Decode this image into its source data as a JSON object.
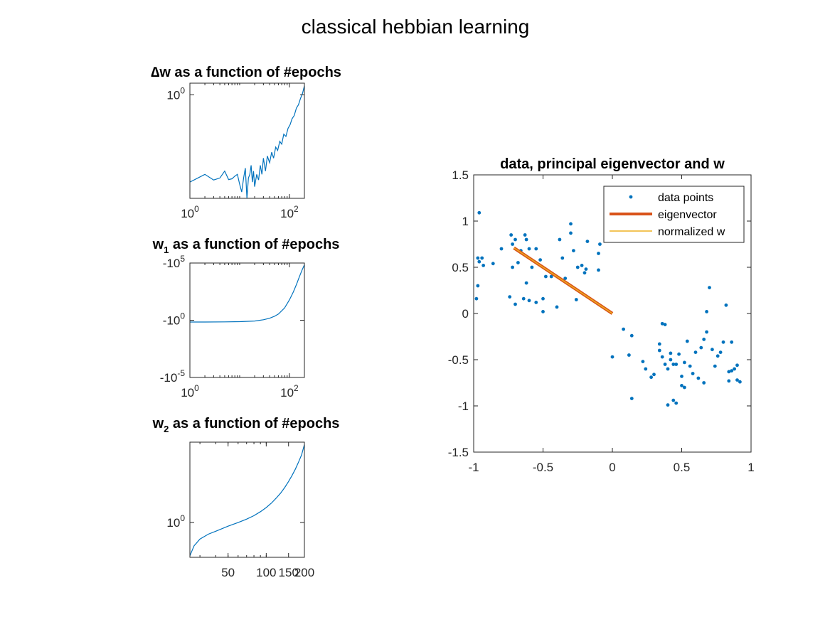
{
  "figure": {
    "title": "classical hebbian learning"
  },
  "colors": {
    "blue": "#0072BD",
    "orange": "#D95319",
    "yellow": "#EDB120",
    "axis": "#262626"
  },
  "chart_data": [
    {
      "id": "dw",
      "type": "line",
      "title": "∆w as a function of #epochs",
      "xscale": "log",
      "yscale": "log",
      "xlim": [
        1,
        200
      ],
      "ylim": [
        0.05,
        1.4
      ],
      "xticks": [
        {
          "v": 1,
          "base": "10",
          "exp": "0"
        },
        {
          "v": 100,
          "base": "10",
          "exp": "2"
        }
      ],
      "yticks": [
        {
          "v": 1,
          "base": "10",
          "exp": "0"
        }
      ],
      "grid": false,
      "series": [
        {
          "x": [
            1,
            2,
            3,
            4,
            5,
            6,
            7,
            8,
            9,
            10,
            11,
            12,
            13,
            14,
            15,
            16,
            17,
            18,
            19,
            20,
            22,
            24,
            26,
            28,
            30,
            33,
            36,
            40,
            44,
            48,
            53,
            58,
            64,
            70,
            77,
            85,
            94,
            103,
            113,
            125,
            138,
            152,
            167,
            184,
            200
          ],
          "y": [
            0.08,
            0.1,
            0.085,
            0.09,
            0.11,
            0.086,
            0.088,
            0.095,
            0.1,
            0.075,
            0.06,
            0.09,
            0.12,
            0.05,
            0.09,
            0.1,
            0.13,
            0.08,
            0.11,
            0.07,
            0.1,
            0.085,
            0.13,
            0.1,
            0.16,
            0.11,
            0.17,
            0.14,
            0.19,
            0.16,
            0.22,
            0.2,
            0.26,
            0.24,
            0.32,
            0.3,
            0.38,
            0.42,
            0.5,
            0.55,
            0.68,
            0.75,
            0.9,
            1.05,
            1.3
          ]
        }
      ]
    },
    {
      "id": "w1",
      "type": "line",
      "title": "w1 as a function of #epochs",
      "xscale": "log",
      "yscale": "symlog-negative",
      "xlim": [
        1,
        200
      ],
      "ylim": [
        -100000,
        -1e-05
      ],
      "xticks": [
        {
          "v": 1,
          "base": "10",
          "exp": "0"
        },
        {
          "v": 100,
          "base": "10",
          "exp": "2"
        }
      ],
      "yticks": [
        {
          "v": -1e-05,
          "base": "-10",
          "exp": "-5"
        },
        {
          "v": -1,
          "base": "-10",
          "exp": "0"
        },
        {
          "v": -100000,
          "base": "-10",
          "exp": "5"
        }
      ],
      "grid": false,
      "series": [
        {
          "x": [
            1,
            2,
            5,
            10,
            20,
            30,
            40,
            50,
            60,
            80,
            100,
            120,
            140,
            160,
            180,
            200
          ],
          "y": [
            -0.7,
            -0.7,
            -0.72,
            -0.75,
            -0.85,
            -1.1,
            -1.5,
            -2.2,
            -3.5,
            -12,
            -60,
            -300,
            -1500,
            -7000,
            -25000,
            -70000
          ]
        }
      ]
    },
    {
      "id": "w2",
      "type": "line",
      "title": "w2 as a function of #epochs",
      "xscale": "log",
      "yscale": "log",
      "xlim": [
        25,
        200
      ],
      "ylim": [
        0.008,
        70000
      ],
      "xticks": [
        {
          "v": 50,
          "label": "50"
        },
        {
          "v": 100,
          "label": "100"
        },
        {
          "v": 150,
          "label": "150"
        },
        {
          "v": 200,
          "label": "200"
        }
      ],
      "yticks": [
        {
          "v": 1,
          "base": "10",
          "exp": "0"
        }
      ],
      "grid": false,
      "series": [
        {
          "x": [
            25,
            27,
            30,
            35,
            40,
            50,
            60,
            70,
            80,
            90,
            100,
            110,
            120,
            130,
            140,
            150,
            160,
            170,
            180,
            190,
            200
          ],
          "y": [
            0.01,
            0.04,
            0.1,
            0.2,
            0.3,
            0.6,
            1.0,
            1.6,
            2.6,
            4.5,
            8,
            15,
            30,
            60,
            130,
            300,
            700,
            1700,
            4500,
            12000,
            50000
          ]
        }
      ]
    },
    {
      "id": "scatter",
      "type": "scatter",
      "title": "data, principal eigenvector and w",
      "xlim": [
        -1,
        1
      ],
      "ylim": [
        -1.5,
        1.5
      ],
      "xticks": [
        {
          "v": -1,
          "label": "-1"
        },
        {
          "v": -0.5,
          "label": "-0.5"
        },
        {
          "v": 0,
          "label": "0"
        },
        {
          "v": 0.5,
          "label": "0.5"
        },
        {
          "v": 1,
          "label": "1"
        }
      ],
      "yticks": [
        {
          "v": -1.5,
          "label": "-1.5"
        },
        {
          "v": -1,
          "label": "-1"
        },
        {
          "v": -0.5,
          "label": "-0.5"
        },
        {
          "v": 0,
          "label": "0"
        },
        {
          "v": 0.5,
          "label": "0.5"
        },
        {
          "v": 1,
          "label": "1"
        },
        {
          "v": 1.5,
          "label": "1.5"
        }
      ],
      "grid": false,
      "legend": {
        "location": "top-right",
        "entries": [
          "data points",
          "eigenvector",
          "normalized w"
        ]
      },
      "series": [
        {
          "name": "data points",
          "kind": "markers",
          "points": [
            [
              -0.96,
              1.09
            ],
            [
              -0.97,
              0.6
            ],
            [
              -0.94,
              0.6
            ],
            [
              -0.96,
              0.56
            ],
            [
              -0.93,
              0.52
            ],
            [
              -0.97,
              0.3
            ],
            [
              -0.98,
              0.16
            ],
            [
              -0.86,
              0.54
            ],
            [
              -0.8,
              0.7
            ],
            [
              -0.73,
              0.85
            ],
            [
              -0.7,
              0.8
            ],
            [
              -0.72,
              0.75
            ],
            [
              -0.63,
              0.85
            ],
            [
              -0.62,
              0.8
            ],
            [
              -0.6,
              0.7
            ],
            [
              -0.66,
              0.68
            ],
            [
              -0.55,
              0.7
            ],
            [
              -0.52,
              0.58
            ],
            [
              -0.58,
              0.5
            ],
            [
              -0.68,
              0.55
            ],
            [
              -0.72,
              0.5
            ],
            [
              -0.62,
              0.33
            ],
            [
              -0.6,
              0.14
            ],
            [
              -0.64,
              0.16
            ],
            [
              -0.7,
              0.1
            ],
            [
              -0.74,
              0.18
            ],
            [
              -0.55,
              0.12
            ],
            [
              -0.5,
              0.02
            ],
            [
              -0.5,
              0.16
            ],
            [
              -0.48,
              0.4
            ],
            [
              -0.44,
              0.4
            ],
            [
              -0.38,
              0.8
            ],
            [
              -0.36,
              0.6
            ],
            [
              -0.34,
              0.38
            ],
            [
              -0.3,
              0.97
            ],
            [
              -0.3,
              0.87
            ],
            [
              -0.28,
              0.68
            ],
            [
              -0.25,
              0.5
            ],
            [
              -0.22,
              0.52
            ],
            [
              -0.2,
              0.44
            ],
            [
              -0.19,
              0.48
            ],
            [
              -0.18,
              0.78
            ],
            [
              -0.1,
              0.65
            ],
            [
              -0.09,
              0.75
            ],
            [
              -0.1,
              0.47
            ],
            [
              -0.26,
              0.15
            ],
            [
              -0.4,
              0.07
            ],
            [
              0.0,
              -0.47
            ],
            [
              0.08,
              -0.17
            ],
            [
              0.12,
              -0.45
            ],
            [
              0.14,
              -0.24
            ],
            [
              0.14,
              -0.92
            ],
            [
              0.22,
              -0.52
            ],
            [
              0.24,
              -0.6
            ],
            [
              0.28,
              -0.69
            ],
            [
              0.3,
              -0.66
            ],
            [
              0.34,
              -0.4
            ],
            [
              0.34,
              -0.33
            ],
            [
              0.36,
              -0.11
            ],
            [
              0.38,
              -0.12
            ],
            [
              0.36,
              -0.47
            ],
            [
              0.38,
              -0.55
            ],
            [
              0.4,
              -0.6
            ],
            [
              0.4,
              -0.99
            ],
            [
              0.42,
              -0.43
            ],
            [
              0.42,
              -0.5
            ],
            [
              0.44,
              -0.55
            ],
            [
              0.44,
              -0.94
            ],
            [
              0.46,
              -0.97
            ],
            [
              0.46,
              -0.55
            ],
            [
              0.48,
              -0.44
            ],
            [
              0.5,
              -0.68
            ],
            [
              0.5,
              -0.78
            ],
            [
              0.52,
              -0.8
            ],
            [
              0.52,
              -0.53
            ],
            [
              0.54,
              -0.3
            ],
            [
              0.56,
              -0.57
            ],
            [
              0.58,
              -0.65
            ],
            [
              0.6,
              -0.42
            ],
            [
              0.62,
              -0.7
            ],
            [
              0.64,
              -0.37
            ],
            [
              0.66,
              -0.75
            ],
            [
              0.66,
              -0.28
            ],
            [
              0.68,
              -0.2
            ],
            [
              0.68,
              0.02
            ],
            [
              0.7,
              0.28
            ],
            [
              0.72,
              -0.39
            ],
            [
              0.74,
              -0.57
            ],
            [
              0.76,
              -0.46
            ],
            [
              0.78,
              -0.42
            ],
            [
              0.8,
              -0.31
            ],
            [
              0.82,
              0.09
            ],
            [
              0.84,
              -0.63
            ],
            [
              0.86,
              -0.62
            ],
            [
              0.86,
              -0.31
            ],
            [
              0.88,
              -0.6
            ],
            [
              0.9,
              -0.56
            ],
            [
              0.9,
              -0.72
            ],
            [
              0.92,
              -0.74
            ],
            [
              0.84,
              -0.73
            ]
          ]
        },
        {
          "name": "eigenvector",
          "kind": "line",
          "points": [
            [
              -0.71,
              0.71
            ],
            [
              0.0,
              0.0
            ]
          ]
        },
        {
          "name": "normalized w",
          "kind": "line",
          "points": [
            [
              -0.71,
              0.71
            ],
            [
              0.0,
              0.0
            ]
          ]
        }
      ]
    }
  ]
}
